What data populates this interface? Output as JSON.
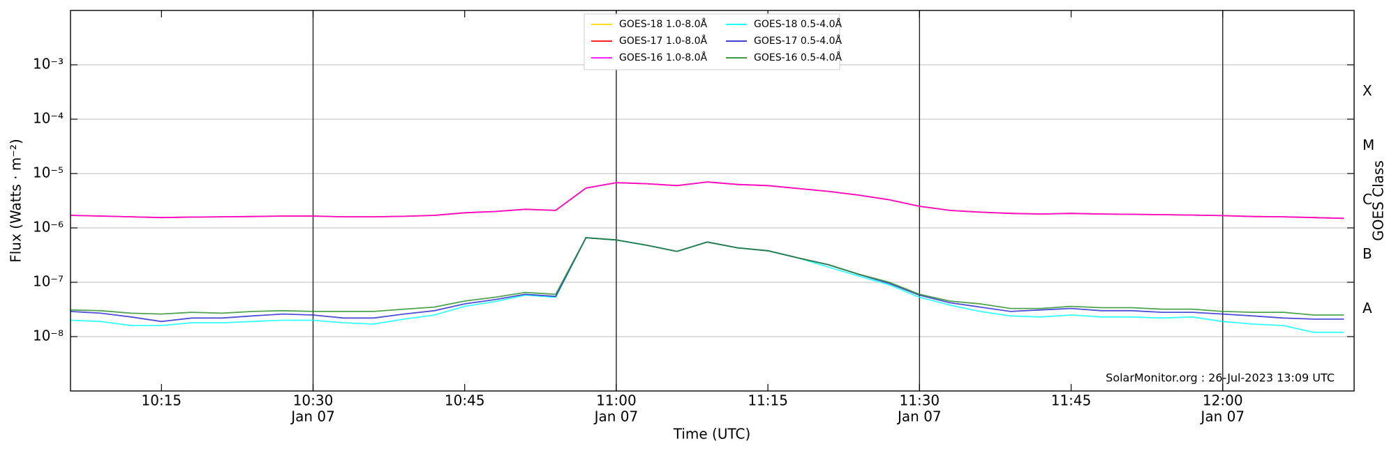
{
  "chart_data": {
    "type": "line",
    "xlabel": "Time (UTC)",
    "ylabel": "Flux (Watts · m⁻²)",
    "y2label": "GOES Class",
    "annotation": "SolarMonitor.org : 26-Jul-2023 13:09 UTC",
    "log_y": true,
    "grid": true,
    "legend_position": "upper center",
    "xlim": [
      "10:06",
      "12:13"
    ],
    "xticks": [
      "10:15",
      {
        "value": "10:30",
        "label": [
          "10:30",
          "Jan 07"
        ]
      },
      "10:45",
      {
        "value": "11:00",
        "label": [
          "11:00",
          "Jan 07"
        ]
      },
      "11:15",
      {
        "value": "11:30",
        "label": [
          "11:30",
          "Jan 07"
        ]
      },
      "11:45",
      {
        "value": "12:00",
        "label": [
          "12:00",
          "Jan 07"
        ]
      }
    ],
    "ylim": [
      1e-09,
      0.01
    ],
    "yticks": [
      {
        "value": 1e-08,
        "label": "10⁻⁸"
      },
      {
        "value": 1e-07,
        "label": "10⁻⁷"
      },
      {
        "value": 1e-06,
        "label": "10⁻⁶"
      },
      {
        "value": 1e-05,
        "label": "10⁻⁵"
      },
      {
        "value": 0.0001,
        "label": "10⁻⁴"
      },
      {
        "value": 0.001,
        "label": "10⁻³"
      }
    ],
    "y2lim": [
      1e-09,
      0.01
    ],
    "y2ticks": [
      {
        "value": 3.2e-08,
        "label": "A"
      },
      {
        "value": 3.2e-07,
        "label": "B"
      },
      {
        "value": 3.2e-06,
        "label": "C"
      },
      {
        "value": 3.2e-05,
        "label": "M"
      },
      {
        "value": 0.00032,
        "label": "X"
      }
    ],
    "x": [
      "10:06",
      "10:09",
      "10:12",
      "10:15",
      "10:18",
      "10:21",
      "10:24",
      "10:27",
      "10:30",
      "10:33",
      "10:36",
      "10:39",
      "10:42",
      "10:45",
      "10:48",
      "10:51",
      "10:54",
      "10:57",
      "11:00",
      "11:03",
      "11:06",
      "11:09",
      "11:12",
      "11:15",
      "11:18",
      "11:21",
      "11:24",
      "11:27",
      "11:30",
      "11:33",
      "11:36",
      "11:39",
      "11:42",
      "11:45",
      "11:48",
      "11:51",
      "11:54",
      "11:57",
      "12:00",
      "12:03",
      "12:06",
      "12:09",
      "12:12"
    ],
    "series": [
      {
        "name": "GOES-18 1.0-8.0Å",
        "color": "#ffd700",
        "values": [
          1.7e-06,
          1.65e-06,
          1.6e-06,
          1.55e-06,
          1.58e-06,
          1.6e-06,
          1.62e-06,
          1.65e-06,
          1.65e-06,
          1.6e-06,
          1.6e-06,
          1.63e-06,
          1.7e-06,
          1.9e-06,
          2e-06,
          2.2e-06,
          2.1e-06,
          5.4e-06,
          6.8e-06,
          6.5e-06,
          6e-06,
          7e-06,
          6.3e-06,
          6e-06,
          5.3e-06,
          4.7e-06,
          4e-06,
          3.3e-06,
          2.5e-06,
          2.1e-06,
          1.95e-06,
          1.85e-06,
          1.8e-06,
          1.85e-06,
          1.8e-06,
          1.78e-06,
          1.75e-06,
          1.72e-06,
          1.68e-06,
          1.62e-06,
          1.6e-06,
          1.55e-06,
          1.5e-06
        ]
      },
      {
        "name": "GOES-17 1.0-8.0Å",
        "color": "#ff0000",
        "values": [
          1.7e-06,
          1.65e-06,
          1.6e-06,
          1.55e-06,
          1.58e-06,
          1.6e-06,
          1.62e-06,
          1.65e-06,
          1.65e-06,
          1.6e-06,
          1.6e-06,
          1.63e-06,
          1.7e-06,
          1.9e-06,
          2e-06,
          2.2e-06,
          2.1e-06,
          5.4e-06,
          6.8e-06,
          6.5e-06,
          6e-06,
          7e-06,
          6.3e-06,
          6e-06,
          5.3e-06,
          4.7e-06,
          4e-06,
          3.3e-06,
          2.5e-06,
          2.1e-06,
          1.95e-06,
          1.85e-06,
          1.8e-06,
          1.85e-06,
          1.8e-06,
          1.78e-06,
          1.75e-06,
          1.72e-06,
          1.68e-06,
          1.62e-06,
          1.6e-06,
          1.55e-06,
          1.5e-06
        ]
      },
      {
        "name": "GOES-16 1.0-8.0Å",
        "color": "#ff00ff",
        "values": [
          1.7e-06,
          1.65e-06,
          1.6e-06,
          1.55e-06,
          1.58e-06,
          1.6e-06,
          1.62e-06,
          1.65e-06,
          1.65e-06,
          1.6e-06,
          1.6e-06,
          1.63e-06,
          1.7e-06,
          1.9e-06,
          2e-06,
          2.2e-06,
          2.1e-06,
          5.4e-06,
          6.8e-06,
          6.5e-06,
          6e-06,
          7e-06,
          6.3e-06,
          6e-06,
          5.3e-06,
          4.7e-06,
          4e-06,
          3.3e-06,
          2.5e-06,
          2.1e-06,
          1.95e-06,
          1.85e-06,
          1.8e-06,
          1.85e-06,
          1.8e-06,
          1.78e-06,
          1.75e-06,
          1.72e-06,
          1.68e-06,
          1.62e-06,
          1.6e-06,
          1.55e-06,
          1.5e-06
        ]
      },
      {
        "name": "GOES-18 0.5-4.0Å",
        "color": "#00ffff",
        "values": [
          2e-08,
          1.9e-08,
          1.6e-08,
          1.6e-08,
          1.8e-08,
          1.8e-08,
          1.9e-08,
          2e-08,
          2e-08,
          1.8e-08,
          1.7e-08,
          2.1e-08,
          2.5e-08,
          3.6e-08,
          4.4e-08,
          5.8e-08,
          5.3e-08,
          6.6e-07,
          6e-07,
          4.8e-07,
          3.7e-07,
          5.5e-07,
          4.3e-07,
          3.8e-07,
          2.8e-07,
          1.9e-07,
          1.3e-07,
          9e-08,
          5.3e-08,
          3.8e-08,
          2.9e-08,
          2.4e-08,
          2.3e-08,
          2.5e-08,
          2.3e-08,
          2.3e-08,
          2.2e-08,
          2.3e-08,
          1.9e-08,
          1.7e-08,
          1.6e-08,
          1.2e-08,
          1.2e-08
        ]
      },
      {
        "name": "GOES-17 0.5-4.0Å",
        "color": "#2222cc",
        "values": [
          2.9e-08,
          2.7e-08,
          2.3e-08,
          1.9e-08,
          2.2e-08,
          2.2e-08,
          2.4e-08,
          2.6e-08,
          2.5e-08,
          2.2e-08,
          2.2e-08,
          2.6e-08,
          3e-08,
          4e-08,
          4.8e-08,
          6e-08,
          5.5e-08,
          6.6e-07,
          6e-07,
          4.8e-07,
          3.7e-07,
          5.5e-07,
          4.3e-07,
          3.8e-07,
          2.8e-07,
          2.1e-07,
          1.4e-07,
          9.5e-08,
          5.8e-08,
          4.2e-08,
          3.5e-08,
          2.9e-08,
          3.1e-08,
          3.3e-08,
          3e-08,
          3e-08,
          2.8e-08,
          2.8e-08,
          2.6e-08,
          2.4e-08,
          2.2e-08,
          2.1e-08,
          2.1e-08
        ]
      },
      {
        "name": "GOES-16 0.5-4.0Å",
        "color": "#228b22",
        "values": [
          3.1e-08,
          3e-08,
          2.7e-08,
          2.6e-08,
          2.8e-08,
          2.7e-08,
          2.9e-08,
          3e-08,
          2.9e-08,
          2.9e-08,
          2.9e-08,
          3.2e-08,
          3.5e-08,
          4.5e-08,
          5.3e-08,
          6.5e-08,
          6e-08,
          6.6e-07,
          6e-07,
          4.8e-07,
          3.7e-07,
          5.5e-07,
          4.3e-07,
          3.8e-07,
          2.8e-07,
          2.1e-07,
          1.4e-07,
          1e-07,
          6e-08,
          4.5e-08,
          4e-08,
          3.3e-08,
          3.3e-08,
          3.6e-08,
          3.4e-08,
          3.4e-08,
          3.2e-08,
          3.2e-08,
          2.9e-08,
          2.8e-08,
          2.8e-08,
          2.5e-08,
          2.5e-08
        ]
      }
    ]
  }
}
